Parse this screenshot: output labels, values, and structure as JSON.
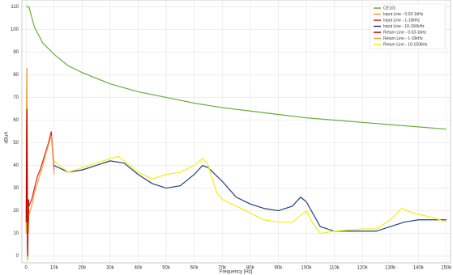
{
  "chart_data": {
    "type": "line",
    "xlabel": "Frequency [Hz]",
    "ylabel": "dBuA",
    "xlim": [
      -1500,
      151500
    ],
    "ylim": [
      -3,
      113
    ],
    "xticks": [
      0,
      {
        "value": 10000,
        "label": "10k"
      },
      {
        "value": 20000,
        "label": "20k"
      },
      {
        "value": 30000,
        "label": "30k"
      },
      {
        "value": 40000,
        "label": "40k"
      },
      {
        "value": 50000,
        "label": "50k"
      },
      {
        "value": 60000,
        "label": "60k"
      },
      {
        "value": 70000,
        "label": "70k"
      },
      {
        "value": 80000,
        "label": "80k"
      },
      {
        "value": 90000,
        "label": "90k"
      },
      {
        "value": 100000,
        "label": "100k"
      },
      {
        "value": 110000,
        "label": "110k"
      },
      {
        "value": 120000,
        "label": "120k"
      },
      {
        "value": 130000,
        "label": "130k"
      },
      {
        "value": 140000,
        "label": "140k"
      },
      {
        "value": 150000,
        "label": "150k"
      }
    ],
    "yticks": [
      0,
      10,
      20,
      30,
      40,
      50,
      60,
      70,
      80,
      90,
      100,
      110
    ],
    "grid": true,
    "legend": "top-right",
    "series": [
      {
        "name": "CE101",
        "color": "#6aaa3a",
        "x": [
          0,
          1000,
          3000,
          6000,
          10000,
          15000,
          20000,
          30000,
          40000,
          50000,
          60000,
          70000,
          80000,
          90000,
          100000,
          110000,
          120000,
          130000,
          140000,
          150000
        ],
        "values": [
          110,
          110,
          101,
          94,
          89,
          84,
          81,
          76,
          72.5,
          70,
          67.5,
          65.5,
          64,
          62.5,
          61,
          60,
          59,
          58,
          57,
          56
        ]
      },
      {
        "name": "Input Line - 0.03-1kHz",
        "color": "#e8a020",
        "x": [
          30,
          100,
          200,
          300,
          400,
          500,
          600,
          700,
          800,
          900,
          1000
        ],
        "values": [
          10,
          40,
          70,
          83,
          50,
          20,
          -2,
          25,
          10,
          15,
          20
        ]
      },
      {
        "name": "Input Line - 1-10kHz",
        "color": "#e02020",
        "x": [
          1000,
          2000,
          3000,
          4000,
          5000,
          6000,
          7000,
          8000,
          9000,
          10000
        ],
        "values": [
          22,
          25,
          30,
          35,
          38,
          42,
          46,
          50,
          55,
          38
        ]
      },
      {
        "name": "Input Line - 10-150kHz",
        "color": "#1f3f7a",
        "x": [
          10000,
          15000,
          20000,
          25000,
          30000,
          35000,
          40000,
          45000,
          50000,
          55000,
          60000,
          63000,
          65000,
          70000,
          75000,
          80000,
          85000,
          90000,
          95000,
          98000,
          100000,
          105000,
          110000,
          115000,
          120000,
          125000,
          130000,
          135000,
          140000,
          145000,
          150000
        ],
        "values": [
          40,
          37,
          38,
          40,
          42,
          41,
          36,
          32,
          30,
          31,
          36,
          40,
          39,
          33,
          26,
          23,
          21,
          20,
          22,
          26,
          24,
          13,
          11,
          11,
          11,
          11,
          13,
          15,
          16,
          16,
          16
        ]
      },
      {
        "name": "Return Line - 0.03-1kHz",
        "color": "#c00000",
        "x": [
          30,
          100,
          200,
          300,
          400,
          500,
          600,
          700,
          800,
          900,
          1000
        ],
        "values": [
          15,
          30,
          55,
          65,
          35,
          5,
          0,
          20,
          15,
          25,
          22
        ]
      },
      {
        "name": "Return Line - 1-10kHz",
        "color": "#f5a040",
        "x": [
          1000,
          2000,
          3000,
          4000,
          5000,
          6000,
          7000,
          8000,
          9000,
          10000
        ],
        "values": [
          18,
          22,
          28,
          32,
          36,
          40,
          45,
          49,
          53,
          36
        ]
      },
      {
        "name": "Return Line - 10-150kHz",
        "color": "#f5ee10",
        "x": [
          10000,
          15000,
          20000,
          25000,
          30000,
          33000,
          35000,
          40000,
          45000,
          50000,
          55000,
          60000,
          63000,
          65000,
          68000,
          70000,
          75000,
          80000,
          85000,
          90000,
          95000,
          98000,
          100000,
          102000,
          105000,
          110000,
          120000,
          125000,
          130000,
          134000,
          138000,
          145000,
          150000
        ],
        "values": [
          42,
          37,
          39,
          41,
          43,
          44,
          42,
          37,
          34,
          36,
          37,
          40,
          43,
          40,
          28,
          25,
          22,
          19,
          16,
          15,
          15,
          18,
          20,
          15,
          10,
          11,
          12,
          12,
          16,
          21,
          19,
          17,
          15
        ]
      }
    ]
  }
}
